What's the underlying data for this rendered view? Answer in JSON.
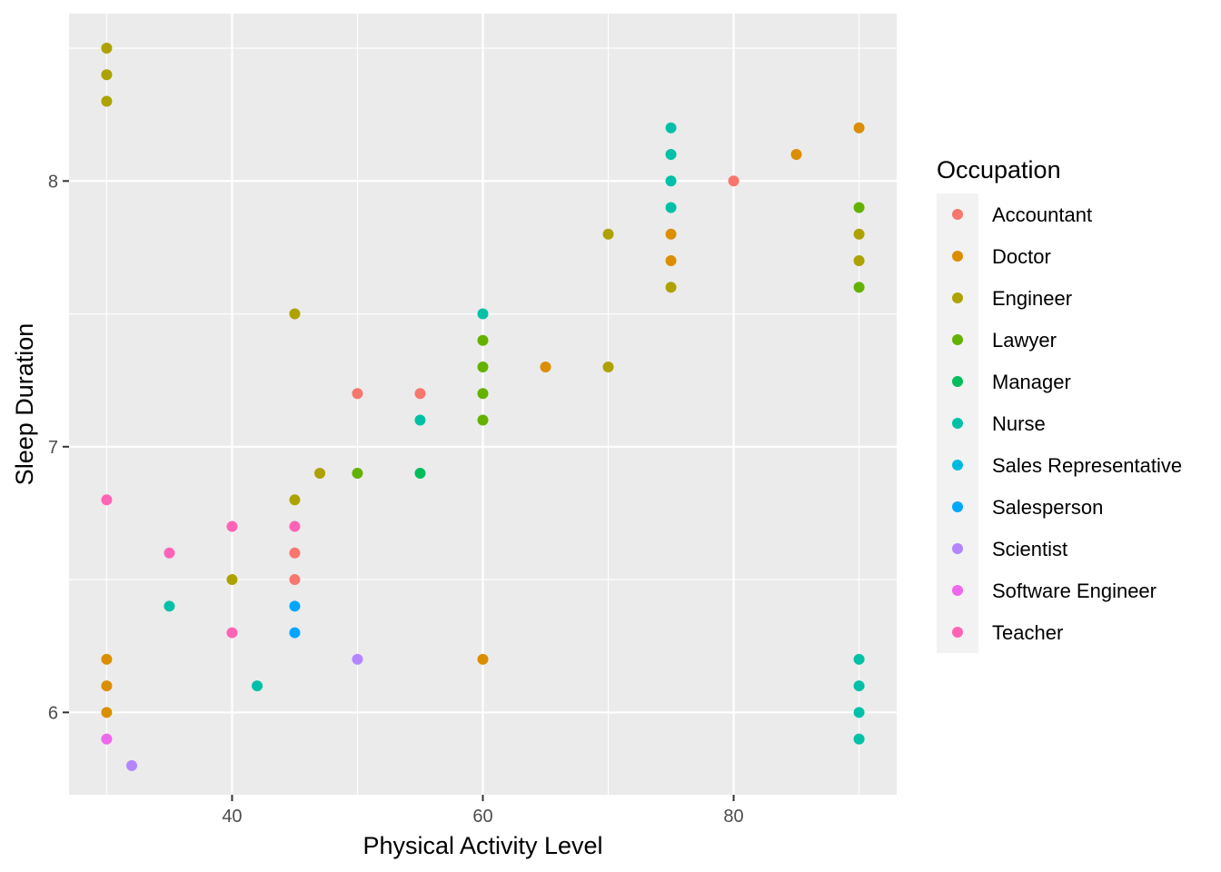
{
  "chart_data": {
    "type": "scatter",
    "title": "",
    "xlabel": "Physical Activity Level",
    "ylabel": "Sleep Duration",
    "xlim": [
      27,
      93
    ],
    "ylim": [
      5.69,
      8.63
    ],
    "xticks": [
      40,
      60,
      80
    ],
    "yticks": [
      6,
      7,
      8
    ],
    "xtick_labels": [
      "40",
      "60",
      "80"
    ],
    "ytick_labels": [
      "6",
      "7",
      "8"
    ],
    "grid": true,
    "legend_placement": "right",
    "legend_title": "Occupation",
    "series": [
      {
        "name": "Accountant",
        "color": "#F8766D",
        "points": [
          [
            50,
            7.2
          ],
          [
            55,
            7.2
          ],
          [
            80,
            8.0
          ],
          [
            45,
            6.6
          ],
          [
            45,
            6.5
          ]
        ]
      },
      {
        "name": "Doctor",
        "color": "#DB8E00",
        "points": [
          [
            90,
            8.2
          ],
          [
            85,
            8.1
          ],
          [
            75,
            7.8
          ],
          [
            75,
            7.7
          ],
          [
            65,
            7.3
          ],
          [
            60,
            6.2
          ],
          [
            30,
            6.2
          ],
          [
            30,
            6.1
          ],
          [
            30,
            6.0
          ]
        ]
      },
      {
        "name": "Engineer",
        "color": "#AEA200",
        "points": [
          [
            30,
            8.5
          ],
          [
            30,
            8.4
          ],
          [
            30,
            8.3
          ],
          [
            70,
            7.8
          ],
          [
            75,
            7.6
          ],
          [
            90,
            7.8
          ],
          [
            90,
            7.7
          ],
          [
            45,
            7.5
          ],
          [
            70,
            7.3
          ],
          [
            47,
            6.9
          ],
          [
            45,
            6.8
          ],
          [
            40,
            6.5
          ]
        ]
      },
      {
        "name": "Lawyer",
        "color": "#64B200",
        "points": [
          [
            90,
            7.9
          ],
          [
            90,
            7.6
          ],
          [
            60,
            7.4
          ],
          [
            60,
            7.3
          ],
          [
            60,
            7.2
          ],
          [
            60,
            7.1
          ],
          [
            50,
            6.9
          ]
        ]
      },
      {
        "name": "Manager",
        "color": "#00BD5C",
        "points": [
          [
            55,
            6.9
          ]
        ]
      },
      {
        "name": "Nurse",
        "color": "#00C1A7",
        "points": [
          [
            75,
            8.2
          ],
          [
            75,
            8.1
          ],
          [
            75,
            8.0
          ],
          [
            75,
            7.9
          ],
          [
            60,
            7.5
          ],
          [
            55,
            7.1
          ],
          [
            35,
            6.4
          ],
          [
            42,
            6.1
          ],
          [
            90,
            6.2
          ],
          [
            90,
            6.1
          ],
          [
            90,
            6.0
          ],
          [
            90,
            5.9
          ]
        ]
      },
      {
        "name": "Sales Representative",
        "color": "#00BADE",
        "points": []
      },
      {
        "name": "Salesperson",
        "color": "#00A6FF",
        "points": [
          [
            45,
            6.4
          ],
          [
            45,
            6.3
          ]
        ]
      },
      {
        "name": "Scientist",
        "color": "#B385FF",
        "points": [
          [
            50,
            6.2
          ],
          [
            32,
            5.8
          ]
        ]
      },
      {
        "name": "Software Engineer",
        "color": "#EF67EB",
        "points": [
          [
            30,
            5.9
          ]
        ]
      },
      {
        "name": "Teacher",
        "color": "#FF63B6",
        "points": [
          [
            30,
            6.8
          ],
          [
            35,
            6.6
          ],
          [
            40,
            6.7
          ],
          [
            45,
            6.7
          ],
          [
            40,
            6.3
          ]
        ]
      }
    ]
  }
}
